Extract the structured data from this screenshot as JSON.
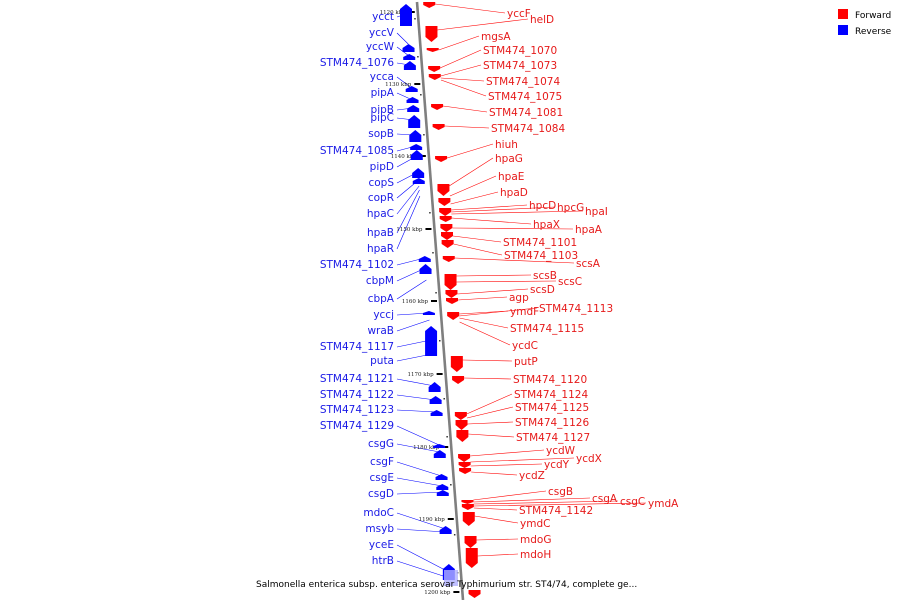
{
  "caption": "Salmonella enterica subsp. enterica serovar Typhimurium str. ST4/74, complete ge...",
  "legend": [
    {
      "label": "Forward",
      "color": "#ff0000"
    },
    {
      "label": "Reverse",
      "color": "#0000ff"
    }
  ],
  "colors": {
    "forward": "#ff0000",
    "reverse": "#0000ff",
    "backbone": "#7f7f7f"
  },
  "ticks": [
    "1120 kbp",
    "1130 kbp",
    "1140 kbp",
    "1150 kbp",
    "1160 kbp",
    "1170 kbp",
    "1180 kbp",
    "1190 kbp",
    "1200 kbp"
  ],
  "reverse_genes": [
    "ycct",
    "yccV",
    "yccW",
    "STM474_1076",
    "ycca",
    "pipA",
    "pipB",
    "pipC",
    "sopB",
    "STM474_1085",
    "pipD",
    "copS",
    "copR",
    "hpaC",
    "hpaB",
    "hpaR",
    "STM474_1102",
    "cbpM",
    "cbpA",
    "yccj",
    "wraB",
    "STM474_1117",
    "puta",
    "STM474_1121",
    "STM474_1122",
    "STM474_1123",
    "STM474_1129",
    "csgG",
    "csgF",
    "csgE",
    "csgD",
    "mdoC",
    "msyb",
    "yceE",
    "htrB"
  ],
  "forward_genes": [
    "yccF",
    "helD",
    "mgsA",
    "STM474_1070",
    "STM474_1073",
    "STM474_1074",
    "STM474_1075",
    "STM474_1081",
    "STM474_1084",
    "hiuh",
    "hpaG",
    "hpaE",
    "hpaD",
    "hpcD",
    "hpcG",
    "hpaI",
    "hpaX",
    "hpaA",
    "STM474_1101",
    "STM474_1103",
    "scsA",
    "scsB",
    "scsC",
    "scsD",
    "agp",
    "ymdF",
    "STM474_1113",
    "STM474_1115",
    "ycdC",
    "putP",
    "STM474_1120",
    "STM474_1124",
    "STM474_1125",
    "STM474_1126",
    "STM474_1127",
    "ycdW",
    "ycdX",
    "ycdY",
    "ycdZ",
    "csgB",
    "csgA",
    "csgC",
    "ymdA",
    "STM474_1142",
    "ymdC",
    "mdoG",
    "mdoH"
  ]
}
